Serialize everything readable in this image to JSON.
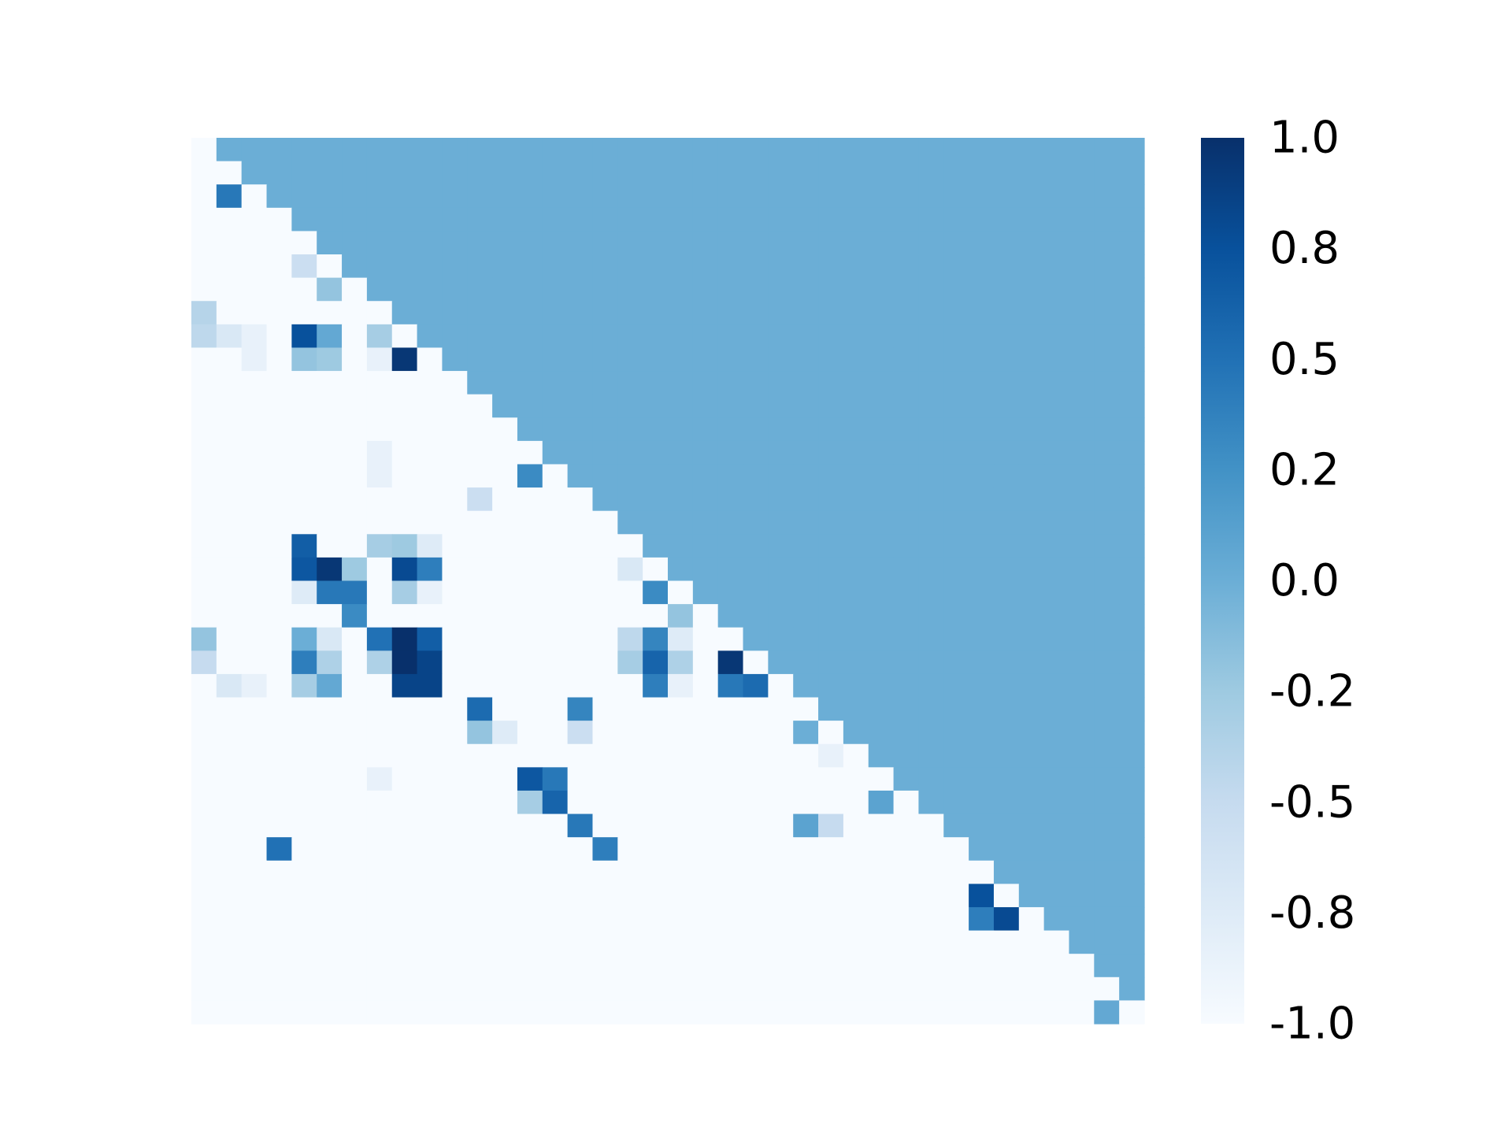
{
  "chart_data": {
    "type": "heatmap",
    "rows": 38,
    "cols": 38,
    "mask_fill_value": 0.0,
    "default_value": -1.0,
    "cells": [
      [
        2,
        1,
        0.45
      ],
      [
        5,
        4,
        -0.55
      ],
      [
        6,
        5,
        -0.2
      ],
      [
        7,
        0,
        -0.4
      ],
      [
        8,
        0,
        -0.45
      ],
      [
        8,
        1,
        -0.7
      ],
      [
        8,
        2,
        -0.85
      ],
      [
        8,
        4,
        0.75
      ],
      [
        8,
        5,
        0.05
      ],
      [
        8,
        7,
        -0.3
      ],
      [
        9,
        2,
        -0.85
      ],
      [
        9,
        4,
        -0.2
      ],
      [
        9,
        5,
        -0.25
      ],
      [
        9,
        7,
        -0.85
      ],
      [
        9,
        8,
        0.95
      ],
      [
        13,
        7,
        -0.85
      ],
      [
        14,
        7,
        -0.85
      ],
      [
        14,
        13,
        0.3
      ],
      [
        15,
        11,
        -0.55
      ],
      [
        17,
        4,
        0.65
      ],
      [
        17,
        7,
        -0.3
      ],
      [
        17,
        8,
        -0.25
      ],
      [
        17,
        9,
        -0.75
      ],
      [
        18,
        4,
        0.7
      ],
      [
        18,
        5,
        0.95
      ],
      [
        18,
        6,
        -0.25
      ],
      [
        18,
        8,
        0.8
      ],
      [
        18,
        9,
        0.4
      ],
      [
        18,
        17,
        -0.7
      ],
      [
        19,
        4,
        -0.75
      ],
      [
        19,
        5,
        0.45
      ],
      [
        19,
        6,
        0.45
      ],
      [
        19,
        8,
        -0.3
      ],
      [
        19,
        9,
        -0.85
      ],
      [
        19,
        18,
        0.3
      ],
      [
        20,
        6,
        0.3
      ],
      [
        20,
        19,
        -0.2
      ],
      [
        21,
        0,
        -0.2
      ],
      [
        21,
        4,
        0.0
      ],
      [
        21,
        5,
        -0.7
      ],
      [
        21,
        7,
        0.5
      ],
      [
        21,
        8,
        1.0
      ],
      [
        21,
        9,
        0.65
      ],
      [
        21,
        17,
        -0.45
      ],
      [
        21,
        18,
        0.35
      ],
      [
        21,
        19,
        -0.75
      ],
      [
        22,
        0,
        -0.5
      ],
      [
        22,
        4,
        0.4
      ],
      [
        22,
        5,
        -0.35
      ],
      [
        22,
        7,
        -0.35
      ],
      [
        22,
        8,
        1.0
      ],
      [
        22,
        9,
        0.85
      ],
      [
        22,
        17,
        -0.3
      ],
      [
        22,
        18,
        0.6
      ],
      [
        22,
        19,
        -0.35
      ],
      [
        22,
        21,
        0.95
      ],
      [
        23,
        1,
        -0.7
      ],
      [
        23,
        2,
        -0.85
      ],
      [
        23,
        4,
        -0.3
      ],
      [
        23,
        5,
        0.05
      ],
      [
        23,
        8,
        0.85
      ],
      [
        23,
        9,
        0.85
      ],
      [
        23,
        18,
        0.4
      ],
      [
        23,
        19,
        -0.85
      ],
      [
        23,
        21,
        0.45
      ],
      [
        23,
        22,
        0.55
      ],
      [
        24,
        11,
        0.55
      ],
      [
        24,
        15,
        0.35
      ],
      [
        25,
        11,
        -0.2
      ],
      [
        25,
        12,
        -0.75
      ],
      [
        25,
        15,
        -0.55
      ],
      [
        25,
        24,
        0.0
      ],
      [
        26,
        25,
        -0.85
      ],
      [
        27,
        7,
        -0.85
      ],
      [
        27,
        13,
        0.7
      ],
      [
        27,
        14,
        0.45
      ],
      [
        28,
        13,
        -0.3
      ],
      [
        28,
        14,
        0.6
      ],
      [
        28,
        27,
        0.1
      ],
      [
        29,
        15,
        0.45
      ],
      [
        29,
        24,
        0.1
      ],
      [
        29,
        25,
        -0.5
      ],
      [
        30,
        3,
        0.5
      ],
      [
        30,
        16,
        0.4
      ],
      [
        32,
        31,
        0.75
      ],
      [
        33,
        31,
        0.4
      ],
      [
        33,
        32,
        0.8
      ],
      [
        37,
        36,
        0.05
      ]
    ],
    "colorbar": {
      "min": -1.0,
      "max": 1.0,
      "ticks": [
        "1.0",
        "0.8",
        "0.5",
        "0.2",
        "0.0",
        "-0.2",
        "-0.5",
        "-0.8",
        "-1.0"
      ]
    },
    "colormap": "Blues",
    "grid": false,
    "axis_labels_visible": false
  }
}
